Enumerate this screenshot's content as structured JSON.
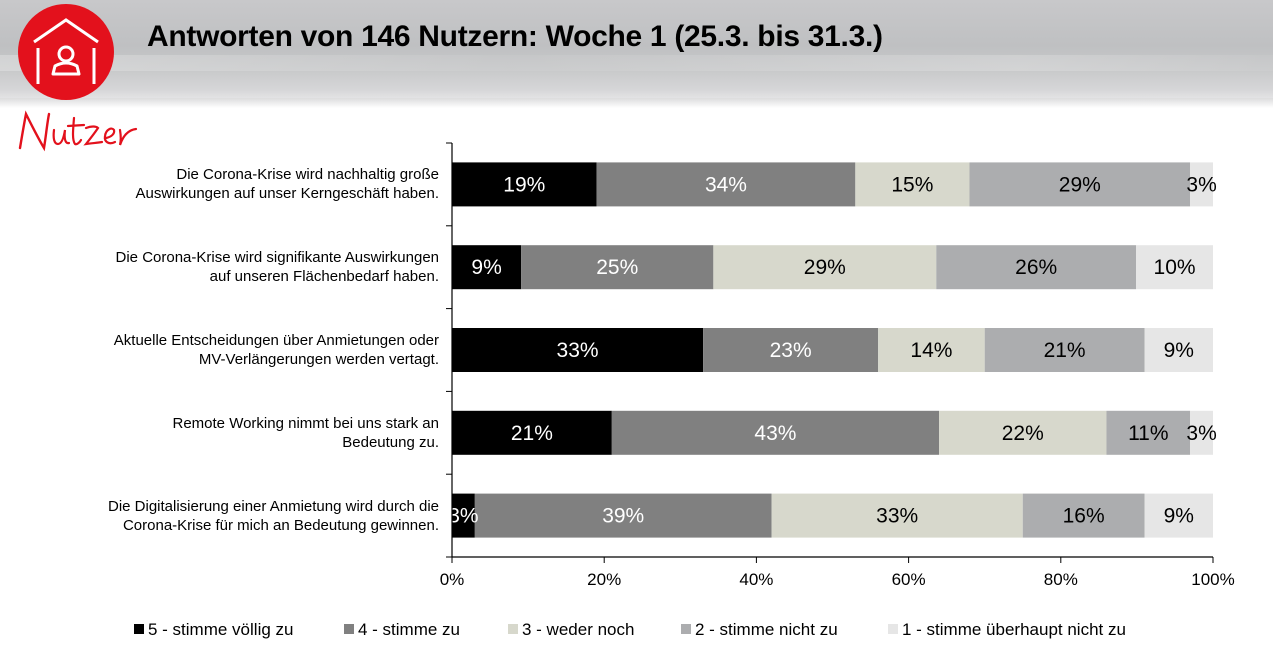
{
  "header": {
    "title": "Antworten von 146 Nutzern: Woche 1 (25.3. bis 31.3.)",
    "logo_icon": "house-person-icon",
    "logo_script_text": "Nutzer",
    "brand_color": "#e3111c"
  },
  "chart_data": {
    "type": "bar",
    "orientation": "horizontal",
    "stacked": true,
    "normalized_percent": true,
    "title": "Antworten von 146 Nutzern: Woche 1 (25.3. bis 31.3.)",
    "xlabel": "",
    "ylabel": "",
    "xlim": [
      0,
      100
    ],
    "x_ticks": [
      "0%",
      "20%",
      "40%",
      "60%",
      "80%",
      "100%"
    ],
    "x_tick_values": [
      0,
      20,
      40,
      60,
      80,
      100
    ],
    "grid": false,
    "legend_position": "bottom",
    "categories": [
      "Die Corona-Krise wird nachhaltig große Auswirkungen auf unser Kerngeschäft haben.",
      "Die Corona-Krise wird signifikante Auswirkungen auf unseren Flächenbedarf haben.",
      "Aktuelle Entscheidungen über Anmietungen oder MV-Verlängerungen werden vertagt.",
      "Remote Working nimmt bei uns stark an Bedeutung zu.",
      "Die Digitalisierung einer Anmietung wird durch die Corona-Krise für mich an Bedeutung gewinnen."
    ],
    "category_lines": [
      [
        "Die Corona-Krise wird nachhaltig große",
        "Auswirkungen auf unser Kerngeschäft haben."
      ],
      [
        "Die Corona-Krise wird signifikante Auswirkungen",
        "auf unseren Flächenbedarf haben."
      ],
      [
        "Aktuelle Entscheidungen über Anmietungen oder",
        "MV-Verlängerungen werden vertagt."
      ],
      [
        "Remote Working nimmt bei uns stark an",
        "Bedeutung zu."
      ],
      [
        "Die Digitalisierung einer Anmietung wird durch die",
        "Corona-Krise für mich an Bedeutung gewinnen."
      ]
    ],
    "series": [
      {
        "name": "5 - stimme völlig zu",
        "color": "#000000",
        "label_color": "#ffffff",
        "values": [
          19,
          9,
          33,
          21,
          3
        ],
        "labels": [
          "19%",
          "9%",
          "33%",
          "21%",
          "3%"
        ]
      },
      {
        "name": "4 - stimme zu",
        "color": "#808080",
        "label_color": "#ffffff",
        "values": [
          34,
          25,
          23,
          43,
          39
        ],
        "labels": [
          "34%",
          "25%",
          "23%",
          "43%",
          "39%"
        ]
      },
      {
        "name": "3 - weder noch",
        "color": "#d7d8cc",
        "label_color": "#000000",
        "values": [
          15,
          29,
          14,
          22,
          33
        ],
        "labels": [
          "15%",
          "29%",
          "14%",
          "22%",
          "33%"
        ]
      },
      {
        "name": "2 - stimme nicht zu",
        "color": "#acadaf",
        "label_color": "#000000",
        "values": [
          29,
          26,
          21,
          11,
          16
        ],
        "labels": [
          "29%",
          "26%",
          "21%",
          "11%",
          "16%"
        ]
      },
      {
        "name": "1 - stimme überhaupt nicht zu",
        "color": "#e6e6e6",
        "label_color": "#000000",
        "values": [
          3,
          10,
          9,
          3,
          9
        ],
        "labels": [
          "3%",
          "10%",
          "9%",
          "3%",
          "9%"
        ]
      }
    ]
  }
}
